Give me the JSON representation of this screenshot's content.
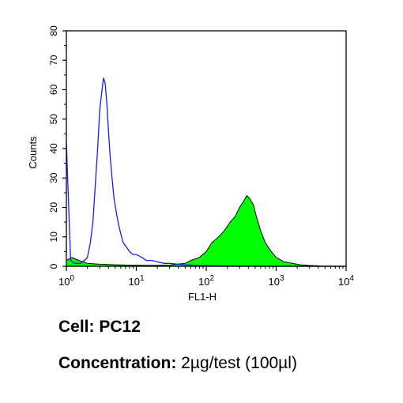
{
  "chart_data": {
    "type": "area",
    "xlabel": "FL1-H",
    "ylabel": "Counts",
    "x_scale": "log",
    "xlim": [
      1,
      10000
    ],
    "ylim": [
      0,
      80
    ],
    "x_ticks": [
      {
        "base": "10",
        "exp": "0"
      },
      {
        "base": "10",
        "exp": "1"
      },
      {
        "base": "10",
        "exp": "2"
      },
      {
        "base": "10",
        "exp": "3"
      },
      {
        "base": "10",
        "exp": "4"
      }
    ],
    "y_ticks": [
      "0",
      "10",
      "20",
      "30",
      "40",
      "50",
      "60",
      "70",
      "80"
    ],
    "series": [
      {
        "style": "outline",
        "color": "#1a1aff",
        "x": [
          1.0,
          1.15,
          1.3,
          1.45,
          1.6,
          1.8,
          2.0,
          2.2,
          2.4,
          2.6,
          2.8,
          3.0,
          3.2,
          3.4,
          3.6,
          3.8,
          4.0,
          4.2,
          4.5,
          4.8,
          5.2,
          5.6,
          6.0,
          6.5,
          7.0,
          8.0,
          9.0,
          10.0,
          12.0,
          14.0,
          17.0,
          20.0,
          25.0,
          30.0,
          40.0,
          50.0,
          70.0,
          100.0,
          200.0,
          1000.0,
          10000.0
        ],
        "y": [
          42,
          2,
          1,
          1,
          1,
          2,
          3,
          8,
          15,
          28,
          40,
          53,
          59,
          64,
          62,
          55,
          46,
          38,
          30,
          23,
          18,
          14,
          11,
          8,
          7,
          5,
          4,
          4,
          3,
          2,
          2,
          1.5,
          1,
          1,
          0.7,
          0.5,
          0.3,
          0.2,
          0.1,
          0,
          0
        ]
      },
      {
        "style": "filled",
        "color": "#00ff00",
        "edge_color": "#000000",
        "x": [
          1.0,
          1.2,
          1.5,
          2.0,
          3.0,
          5.0,
          8.0,
          15.0,
          30.0,
          50.0,
          60.0,
          80.0,
          100.0,
          120.0,
          150.0,
          180.0,
          220.0,
          260.0,
          300.0,
          340.0,
          380.0,
          420.0,
          470.0,
          520.0,
          600.0,
          700.0,
          850.0,
          1000.0,
          1300.0,
          1700.0,
          2200.0,
          3000.0,
          4500.0,
          10000.0
        ],
        "y": [
          2,
          3,
          2,
          1,
          0.7,
          0.5,
          0.4,
          0.3,
          0.4,
          1,
          2,
          3,
          5,
          8,
          10,
          12,
          15,
          17,
          20,
          22,
          24,
          23,
          21,
          17,
          12,
          8,
          5,
          3,
          1.5,
          1,
          0.5,
          0.3,
          0.1,
          0
        ]
      }
    ]
  },
  "caption": {
    "cell_label": "Cell:",
    "cell_value": "PC12",
    "conc_label": "Concentration:",
    "conc_value": "2µg/test (100µl)"
  }
}
